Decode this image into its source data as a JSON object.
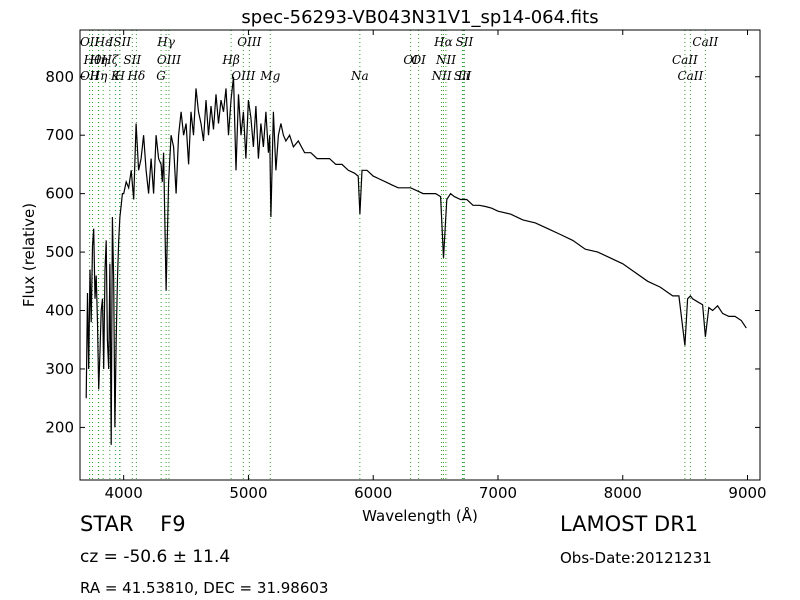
{
  "chart_data": {
    "type": "line",
    "title": "spec-56293-VB043N31V1_sp14-064.fits",
    "xlabel": "Wavelength (Å)",
    "ylabel": "Flux (relative)",
    "xlim": [
      3650,
      9100
    ],
    "ylim": [
      110,
      880
    ],
    "xticks": [
      4000,
      5000,
      6000,
      7000,
      8000,
      9000
    ],
    "yticks": [
      200,
      300,
      400,
      500,
      600,
      700,
      800
    ],
    "grid": false,
    "line_color": "#000000",
    "marker_color": "#2ca02c",
    "series": [
      {
        "x": [
          3700,
          3710,
          3720,
          3730,
          3740,
          3750,
          3760,
          3770,
          3780,
          3790,
          3800,
          3810,
          3820,
          3830,
          3840,
          3850,
          3860,
          3870,
          3880,
          3890,
          3900,
          3910,
          3920,
          3930,
          3940,
          3950,
          3960,
          3970,
          3980,
          3990,
          4000,
          4020,
          4040,
          4060,
          4080,
          4100,
          4120,
          4140,
          4160,
          4180,
          4200,
          4220,
          4240,
          4260,
          4280,
          4300,
          4310,
          4320,
          4340,
          4360,
          4380,
          4400,
          4420,
          4440,
          4460,
          4480,
          4500,
          4520,
          4540,
          4560,
          4580,
          4600,
          4620,
          4640,
          4660,
          4680,
          4700,
          4720,
          4740,
          4760,
          4780,
          4800,
          4820,
          4840,
          4860,
          4880,
          4900,
          4920,
          4940,
          4960,
          4980,
          5000,
          5020,
          5040,
          5060,
          5080,
          5100,
          5120,
          5140,
          5160,
          5170,
          5180,
          5200,
          5220,
          5240,
          5260,
          5280,
          5300,
          5330,
          5360,
          5400,
          5450,
          5500,
          5550,
          5600,
          5650,
          5700,
          5750,
          5800,
          5850,
          5880,
          5893,
          5910,
          5950,
          6000,
          6050,
          6100,
          6150,
          6200,
          6250,
          6300,
          6350,
          6400,
          6450,
          6500,
          6540,
          6563,
          6590,
          6620,
          6650,
          6700,
          6750,
          6800,
          6850,
          6900,
          6950,
          7000,
          7100,
          7200,
          7300,
          7400,
          7500,
          7600,
          7700,
          7800,
          7900,
          8000,
          8100,
          8200,
          8300,
          8400,
          8450,
          8498,
          8520,
          8542,
          8560,
          8600,
          8640,
          8662,
          8690,
          8720,
          8760,
          8800,
          8850,
          8900,
          8950,
          8990
        ],
        "y": [
          250,
          430,
          300,
          470,
          380,
          510,
          540,
          420,
          460,
          380,
          265,
          330,
          400,
          420,
          300,
          470,
          520,
          350,
          300,
          480,
          170,
          560,
          450,
          200,
          350,
          450,
          520,
          560,
          580,
          600,
          600,
          620,
          610,
          640,
          590,
          720,
          640,
          660,
          700,
          640,
          600,
          660,
          600,
          700,
          660,
          650,
          620,
          670,
          434,
          620,
          700,
          680,
          600,
          700,
          740,
          700,
          720,
          650,
          740,
          700,
          780,
          740,
          720,
          690,
          760,
          700,
          750,
          710,
          770,
          720,
          760,
          740,
          780,
          700,
          760,
          800,
          640,
          770,
          700,
          740,
          660,
          760,
          730,
          680,
          750,
          660,
          720,
          680,
          740,
          670,
          700,
          560,
          740,
          640,
          700,
          720,
          700,
          690,
          700,
          680,
          690,
          670,
          670,
          660,
          660,
          660,
          650,
          650,
          640,
          635,
          630,
          565,
          640,
          640,
          630,
          625,
          620,
          615,
          610,
          610,
          610,
          605,
          600,
          600,
          600,
          595,
          490,
          590,
          600,
          595,
          590,
          590,
          580,
          580,
          578,
          575,
          570,
          565,
          555,
          550,
          540,
          530,
          520,
          505,
          500,
          490,
          480,
          465,
          450,
          440,
          425,
          425,
          340,
          420,
          425,
          420,
          415,
          410,
          355,
          405,
          400,
          408,
          395,
          390,
          390,
          383,
          370
        ]
      }
    ],
    "lines_upper": [
      {
        "x": 3727,
        "label": "OII"
      },
      {
        "x": 3750,
        "label": "Hθ"
      },
      {
        "x": 3798,
        "label": "Hη"
      },
      {
        "x": 3835,
        "label": "Hε"
      },
      {
        "x": 3889,
        "label": "Hζ"
      },
      {
        "x": 3934,
        "label": "K"
      },
      {
        "x": 3970,
        "label": "ISII"
      },
      {
        "x": 4069,
        "label": "SII"
      },
      {
        "x": 4102,
        "label": "Hδ"
      },
      {
        "x": 4340,
        "label": "Hγ"
      },
      {
        "x": 4363,
        "label": "OIII"
      },
      {
        "x": 4959,
        "label": "OIII"
      },
      {
        "x": 5007,
        "label": "OIII"
      },
      {
        "x": 6300,
        "label": "OI"
      },
      {
        "x": 6548,
        "label": "NII"
      },
      {
        "x": 6563,
        "label": "Hα"
      },
      {
        "x": 6583,
        "label": "NII"
      },
      {
        "x": 6716,
        "label": "SII"
      },
      {
        "x": 6731,
        "label": "SII"
      },
      {
        "x": 8498,
        "label": "CaII"
      },
      {
        "x": 8542,
        "label": "CaII"
      },
      {
        "x": 8662,
        "label": "CaII"
      }
    ],
    "lines_lower": [
      {
        "x": 3727,
        "label": "OII"
      },
      {
        "x": 3799,
        "label": "Hη"
      },
      {
        "x": 3968,
        "label": "H"
      },
      {
        "x": 4300,
        "label": "G"
      },
      {
        "x": 4861,
        "label": "Hβ"
      },
      {
        "x": 5175,
        "label": "Mg"
      },
      {
        "x": 5893,
        "label": "Na"
      },
      {
        "x": 6364,
        "label": "OI"
      },
      {
        "x": 6725,
        "label": "Li"
      }
    ]
  },
  "info": {
    "object_class": "STAR    F9",
    "redshift": "cz = -50.6 ± 11.4",
    "coordinates": "RA = 41.53810, DEC = 31.98603",
    "survey": "LAMOST DR1",
    "obs_date": "Obs-Date:20121231"
  }
}
